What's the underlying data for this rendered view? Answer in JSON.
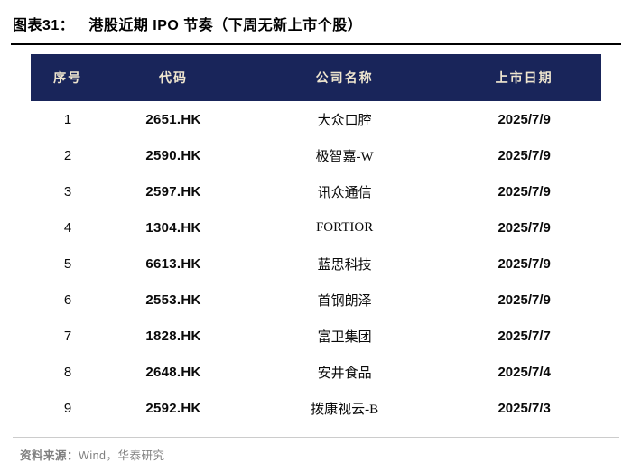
{
  "title": {
    "label": "图表31：",
    "text": "港股近期 IPO 节奏（下周无新上市个股）"
  },
  "table": {
    "headers": [
      "序号",
      "代码",
      "公司名称",
      "上市日期"
    ],
    "rows": [
      {
        "no": "1",
        "code": "2651.HK",
        "company": "大众口腔",
        "date": "2025/7/9"
      },
      {
        "no": "2",
        "code": "2590.HK",
        "company": "极智嘉-W",
        "date": "2025/7/9"
      },
      {
        "no": "3",
        "code": "2597.HK",
        "company": "讯众通信",
        "date": "2025/7/9"
      },
      {
        "no": "4",
        "code": "1304.HK",
        "company": "FORTIOR",
        "date": "2025/7/9"
      },
      {
        "no": "5",
        "code": "6613.HK",
        "company": "蓝思科技",
        "date": "2025/7/9"
      },
      {
        "no": "6",
        "code": "2553.HK",
        "company": "首钢朗泽",
        "date": "2025/7/9"
      },
      {
        "no": "7",
        "code": "1828.HK",
        "company": "富卫集团",
        "date": "2025/7/7"
      },
      {
        "no": "8",
        "code": "2648.HK",
        "company": "安井食品",
        "date": "2025/7/4"
      },
      {
        "no": "9",
        "code": "2592.HK",
        "company": "拨康视云-B",
        "date": "2025/7/3"
      }
    ]
  },
  "footer": {
    "source_label": "资料来源：",
    "source_text": "Wind，华泰研究"
  },
  "colors": {
    "header_bg": "#19255A",
    "header_text": "#EFE6CF",
    "body_text": "#0A0A0A",
    "source_text": "#808080",
    "title_rule": "#000000",
    "footer_rule": "#CCCCCC"
  }
}
